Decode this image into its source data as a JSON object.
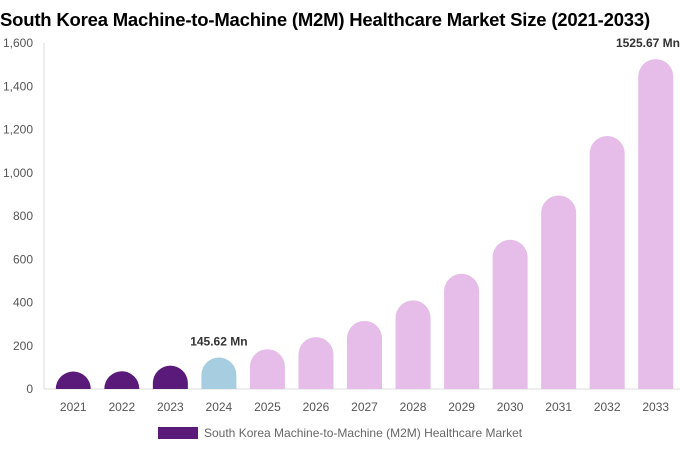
{
  "chart_data": {
    "type": "bar",
    "title": "South Korea Machine-to-Machine (M2M) Healthcare Market Size (2021-2033)",
    "categories": [
      "2021",
      "2022",
      "2023",
      "2024",
      "2025",
      "2026",
      "2027",
      "2028",
      "2029",
      "2030",
      "2031",
      "2032",
      "2033"
    ],
    "series": [
      {
        "name": "South Korea Machine-to-Machine (M2M) Healthcare Market",
        "values": [
          65,
          82,
          108,
          145.62,
          184,
          240,
          315,
          410,
          533,
          690,
          895,
          1170,
          1525.67
        ]
      }
    ],
    "ylim": [
      0,
      1600
    ],
    "yticks": [
      "0",
      "200",
      "400",
      "600",
      "800",
      "1,000",
      "1,200",
      "1,400",
      "1,600"
    ],
    "ytick_values": [
      0,
      200,
      400,
      600,
      800,
      1000,
      1200,
      1400,
      1600
    ],
    "annotations": [
      {
        "category": "2024",
        "text": "145.62 Mn"
      },
      {
        "category": "2033",
        "text": "1525.67 Mn"
      }
    ],
    "bar_colors": {
      "historical": "#5a1a7a",
      "current": "#a7cde0",
      "forecast": "#e6bde8"
    },
    "historical_count": 3,
    "current_index": 3,
    "grid": false,
    "legend_position": "bottom"
  }
}
